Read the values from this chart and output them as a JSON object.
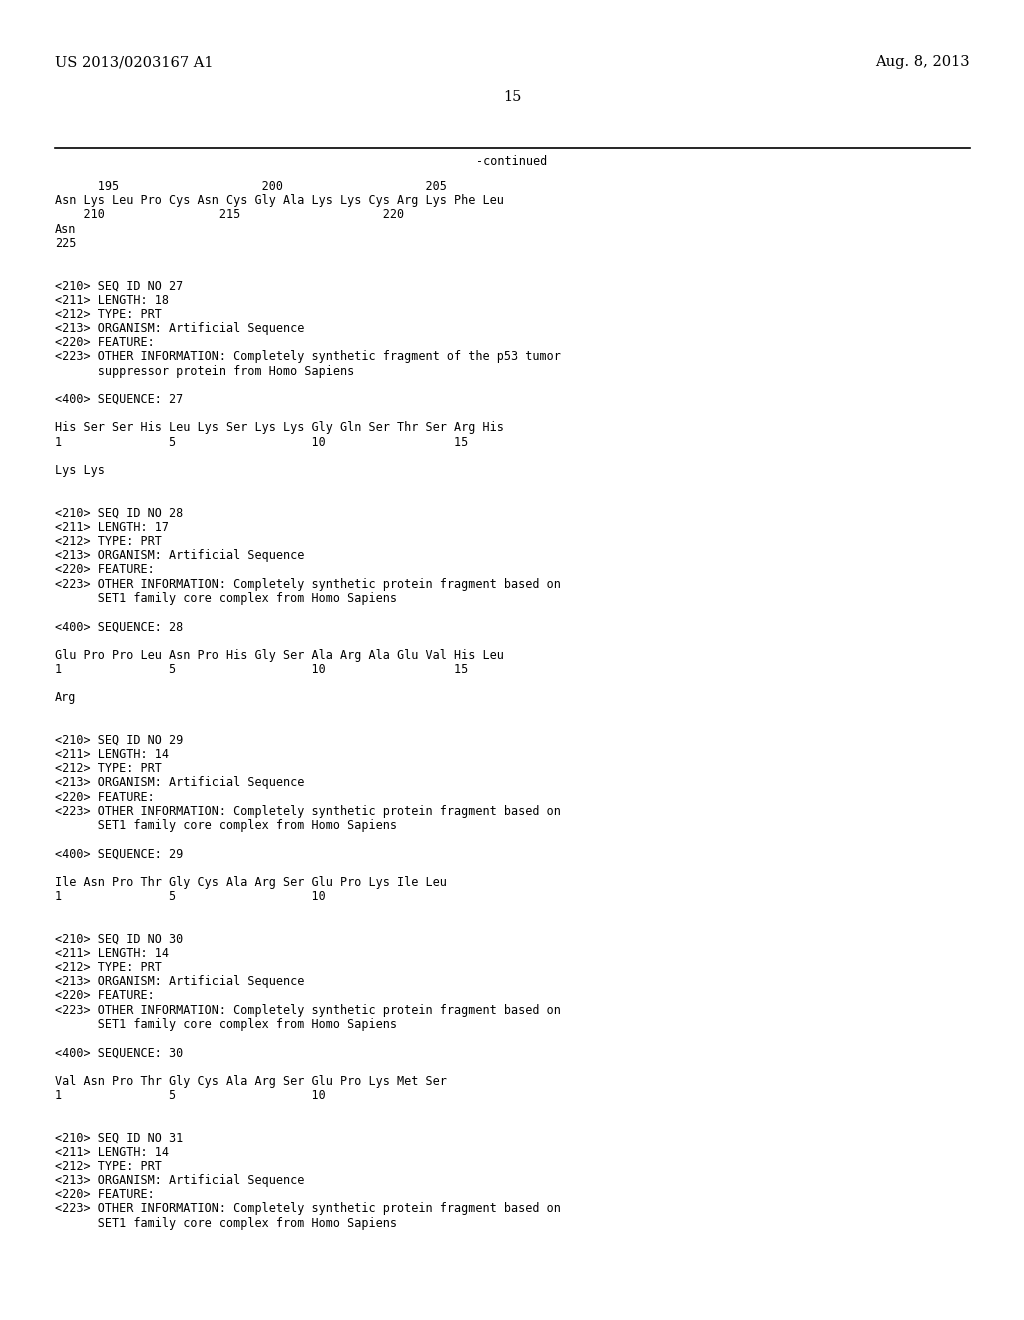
{
  "header_left": "US 2013/0203167 A1",
  "header_right": "Aug. 8, 2013",
  "page_number": "15",
  "continued_label": "-continued",
  "background_color": "#ffffff",
  "text_color": "#000000",
  "font_size_header": 10.5,
  "font_size_body": 8.5,
  "content_lines": [
    {
      "text": "      195                    200                    205",
      "indent": 0.055
    },
    {
      "text": "Asn Lys Leu Pro Cys Asn Cys Gly Ala Lys Lys Cys Arg Lys Phe Leu",
      "indent": 0.055
    },
    {
      "text": "    210                215                    220",
      "indent": 0.055
    },
    {
      "text": "Asn",
      "indent": 0.055
    },
    {
      "text": "225",
      "indent": 0.055
    },
    {
      "text": "",
      "indent": 0.055
    },
    {
      "text": "",
      "indent": 0.055
    },
    {
      "text": "<210> SEQ ID NO 27",
      "indent": 0.055
    },
    {
      "text": "<211> LENGTH: 18",
      "indent": 0.055
    },
    {
      "text": "<212> TYPE: PRT",
      "indent": 0.055
    },
    {
      "text": "<213> ORGANISM: Artificial Sequence",
      "indent": 0.055
    },
    {
      "text": "<220> FEATURE:",
      "indent": 0.055
    },
    {
      "text": "<223> OTHER INFORMATION: Completely synthetic fragment of the p53 tumor",
      "indent": 0.055
    },
    {
      "text": "      suppressor protein from Homo Sapiens",
      "indent": 0.055
    },
    {
      "text": "",
      "indent": 0.055
    },
    {
      "text": "<400> SEQUENCE: 27",
      "indent": 0.055
    },
    {
      "text": "",
      "indent": 0.055
    },
    {
      "text": "His Ser Ser His Leu Lys Ser Lys Lys Gly Gln Ser Thr Ser Arg His",
      "indent": 0.055
    },
    {
      "text": "1               5                   10                  15",
      "indent": 0.055
    },
    {
      "text": "",
      "indent": 0.055
    },
    {
      "text": "Lys Lys",
      "indent": 0.055
    },
    {
      "text": "",
      "indent": 0.055
    },
    {
      "text": "",
      "indent": 0.055
    },
    {
      "text": "<210> SEQ ID NO 28",
      "indent": 0.055
    },
    {
      "text": "<211> LENGTH: 17",
      "indent": 0.055
    },
    {
      "text": "<212> TYPE: PRT",
      "indent": 0.055
    },
    {
      "text": "<213> ORGANISM: Artificial Sequence",
      "indent": 0.055
    },
    {
      "text": "<220> FEATURE:",
      "indent": 0.055
    },
    {
      "text": "<223> OTHER INFORMATION: Completely synthetic protein fragment based on",
      "indent": 0.055
    },
    {
      "text": "      SET1 family core complex from Homo Sapiens",
      "indent": 0.055
    },
    {
      "text": "",
      "indent": 0.055
    },
    {
      "text": "<400> SEQUENCE: 28",
      "indent": 0.055
    },
    {
      "text": "",
      "indent": 0.055
    },
    {
      "text": "Glu Pro Pro Leu Asn Pro His Gly Ser Ala Arg Ala Glu Val His Leu",
      "indent": 0.055
    },
    {
      "text": "1               5                   10                  15",
      "indent": 0.055
    },
    {
      "text": "",
      "indent": 0.055
    },
    {
      "text": "Arg",
      "indent": 0.055
    },
    {
      "text": "",
      "indent": 0.055
    },
    {
      "text": "",
      "indent": 0.055
    },
    {
      "text": "<210> SEQ ID NO 29",
      "indent": 0.055
    },
    {
      "text": "<211> LENGTH: 14",
      "indent": 0.055
    },
    {
      "text": "<212> TYPE: PRT",
      "indent": 0.055
    },
    {
      "text": "<213> ORGANISM: Artificial Sequence",
      "indent": 0.055
    },
    {
      "text": "<220> FEATURE:",
      "indent": 0.055
    },
    {
      "text": "<223> OTHER INFORMATION: Completely synthetic protein fragment based on",
      "indent": 0.055
    },
    {
      "text": "      SET1 family core complex from Homo Sapiens",
      "indent": 0.055
    },
    {
      "text": "",
      "indent": 0.055
    },
    {
      "text": "<400> SEQUENCE: 29",
      "indent": 0.055
    },
    {
      "text": "",
      "indent": 0.055
    },
    {
      "text": "Ile Asn Pro Thr Gly Cys Ala Arg Ser Glu Pro Lys Ile Leu",
      "indent": 0.055
    },
    {
      "text": "1               5                   10",
      "indent": 0.055
    },
    {
      "text": "",
      "indent": 0.055
    },
    {
      "text": "",
      "indent": 0.055
    },
    {
      "text": "<210> SEQ ID NO 30",
      "indent": 0.055
    },
    {
      "text": "<211> LENGTH: 14",
      "indent": 0.055
    },
    {
      "text": "<212> TYPE: PRT",
      "indent": 0.055
    },
    {
      "text": "<213> ORGANISM: Artificial Sequence",
      "indent": 0.055
    },
    {
      "text": "<220> FEATURE:",
      "indent": 0.055
    },
    {
      "text": "<223> OTHER INFORMATION: Completely synthetic protein fragment based on",
      "indent": 0.055
    },
    {
      "text": "      SET1 family core complex from Homo Sapiens",
      "indent": 0.055
    },
    {
      "text": "",
      "indent": 0.055
    },
    {
      "text": "<400> SEQUENCE: 30",
      "indent": 0.055
    },
    {
      "text": "",
      "indent": 0.055
    },
    {
      "text": "Val Asn Pro Thr Gly Cys Ala Arg Ser Glu Pro Lys Met Ser",
      "indent": 0.055
    },
    {
      "text": "1               5                   10",
      "indent": 0.055
    },
    {
      "text": "",
      "indent": 0.055
    },
    {
      "text": "",
      "indent": 0.055
    },
    {
      "text": "<210> SEQ ID NO 31",
      "indent": 0.055
    },
    {
      "text": "<211> LENGTH: 14",
      "indent": 0.055
    },
    {
      "text": "<212> TYPE: PRT",
      "indent": 0.055
    },
    {
      "text": "<213> ORGANISM: Artificial Sequence",
      "indent": 0.055
    },
    {
      "text": "<220> FEATURE:",
      "indent": 0.055
    },
    {
      "text": "<223> OTHER INFORMATION: Completely synthetic protein fragment based on",
      "indent": 0.055
    },
    {
      "text": "      SET1 family core complex from Homo Sapiens",
      "indent": 0.055
    }
  ]
}
